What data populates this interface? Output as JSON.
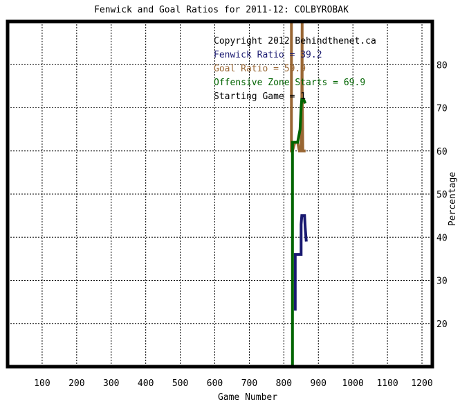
{
  "chart_data": {
    "type": "line",
    "title": "Fenwick and Goal Ratios for 2011-12: COLBYROBAK",
    "xlabel": "Game Number",
    "ylabel": "Percentage",
    "xlim": [
      0,
      1230
    ],
    "ylim": [
      10,
      90
    ],
    "x_ticks": [
      100,
      200,
      300,
      400,
      500,
      600,
      700,
      800,
      900,
      1000,
      1100,
      1200
    ],
    "y_ticks": [
      20,
      30,
      40,
      50,
      60,
      70,
      80
    ],
    "grid": true,
    "annotations": {
      "copyright": "Copyright 2012 Behindthenet.ca",
      "fenwick": "Fenwick Ratio = 39.2",
      "goal": "Goal Ratio = 59.9",
      "ozone": "Offensive Zone Starts = 69.9",
      "start": "Starting Game = 1"
    },
    "series": [
      {
        "name": "Fenwick Ratio",
        "color": "#191970",
        "points": [
          [
            833,
            23
          ],
          [
            833,
            36
          ],
          [
            840,
            36
          ],
          [
            850,
            36
          ],
          [
            850,
            43
          ],
          [
            852,
            45
          ],
          [
            860,
            45
          ],
          [
            862,
            42
          ],
          [
            865,
            39
          ]
        ]
      },
      {
        "name": "Goal Ratio",
        "color": "#996633",
        "points": [
          [
            822,
            90
          ],
          [
            822,
            60
          ],
          [
            825,
            60
          ],
          [
            832,
            62
          ],
          [
            840,
            62
          ],
          [
            845,
            60
          ],
          [
            850,
            60
          ],
          [
            852,
            70
          ],
          [
            853,
            90
          ],
          [
            853,
            75
          ],
          [
            855,
            60
          ],
          [
            863,
            60
          ]
        ]
      },
      {
        "name": "Offensive Zone Starts",
        "color": "#006400",
        "points": [
          [
            825,
            10
          ],
          [
            825,
            62
          ],
          [
            830,
            62
          ],
          [
            840,
            62
          ],
          [
            847,
            65
          ],
          [
            850,
            70
          ],
          [
            852,
            72
          ],
          [
            857,
            72
          ],
          [
            862,
            71
          ]
        ]
      }
    ]
  }
}
